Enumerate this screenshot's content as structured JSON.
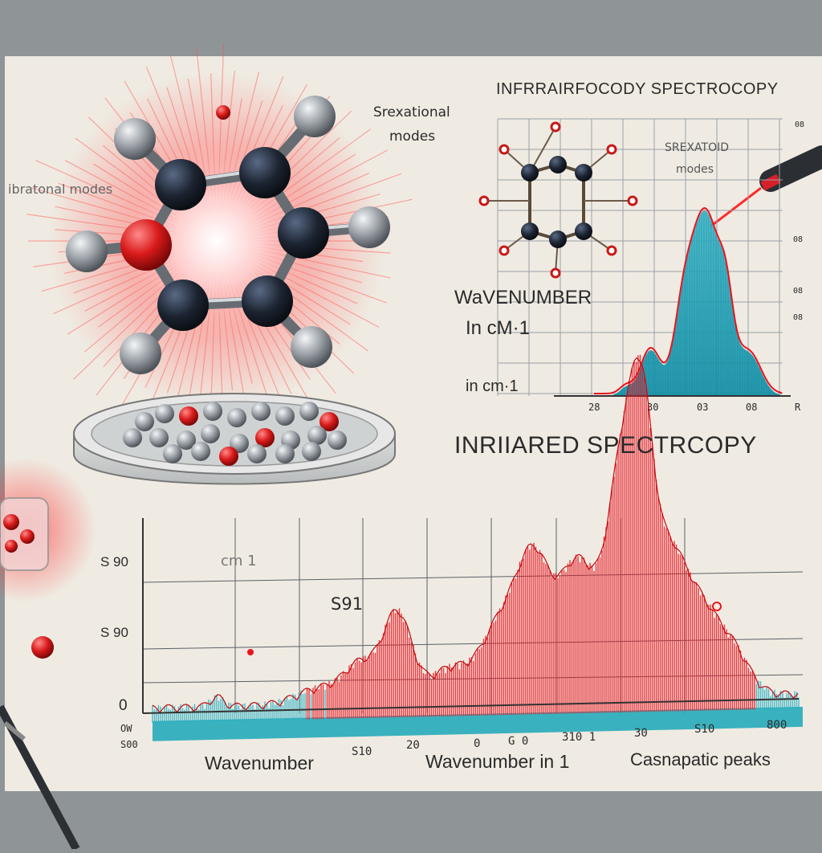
{
  "colors": {
    "paper": "#efebe2",
    "desk": "#8f9597",
    "ir_red": "#e8141e",
    "teal": "#17a6b8",
    "atom_dark": "#1c2431",
    "atom_red": "#d91a1a",
    "atom_grey": "#9aa0a6"
  },
  "illustration": {
    "annotation_vibrational_top": "Srexational",
    "annotation_vibrational_top2": "modes",
    "annotation_vibrational_left": "ibratonal modes",
    "annotation_dot": "·"
  },
  "upper_chart": {
    "title": "INFRRAIRFOCODY SPECTROCOPY",
    "inner_label_line1": "SREXATOID",
    "inner_label_line2": "modes",
    "ylabel_line1": "WaVENUMBER",
    "ylabel_line2": "In cM·1",
    "xlabel_left": "in cm·1",
    "right_ticks": [
      "08",
      "08",
      "08",
      "08"
    ],
    "x_ticks": [
      "28",
      "30",
      "03",
      "08",
      "R"
    ]
  },
  "lower_chart": {
    "title": "INRIIARED SPECTRCOPY",
    "y_ticks": [
      "S 90",
      "S 90",
      "0"
    ],
    "unit_label": "cm 1",
    "peak_label": "S91",
    "x_ticks": [
      "S10",
      "20",
      "0",
      "G 0",
      "310 1",
      "30",
      "S10",
      "800"
    ],
    "corner_tick_1": "OW",
    "corner_tick_2": "S00",
    "xlabel_left": "Wavenumber",
    "xlabel_mid": "Wavenumber in 1",
    "xlabel_right": "Casnapatic peaks"
  }
}
